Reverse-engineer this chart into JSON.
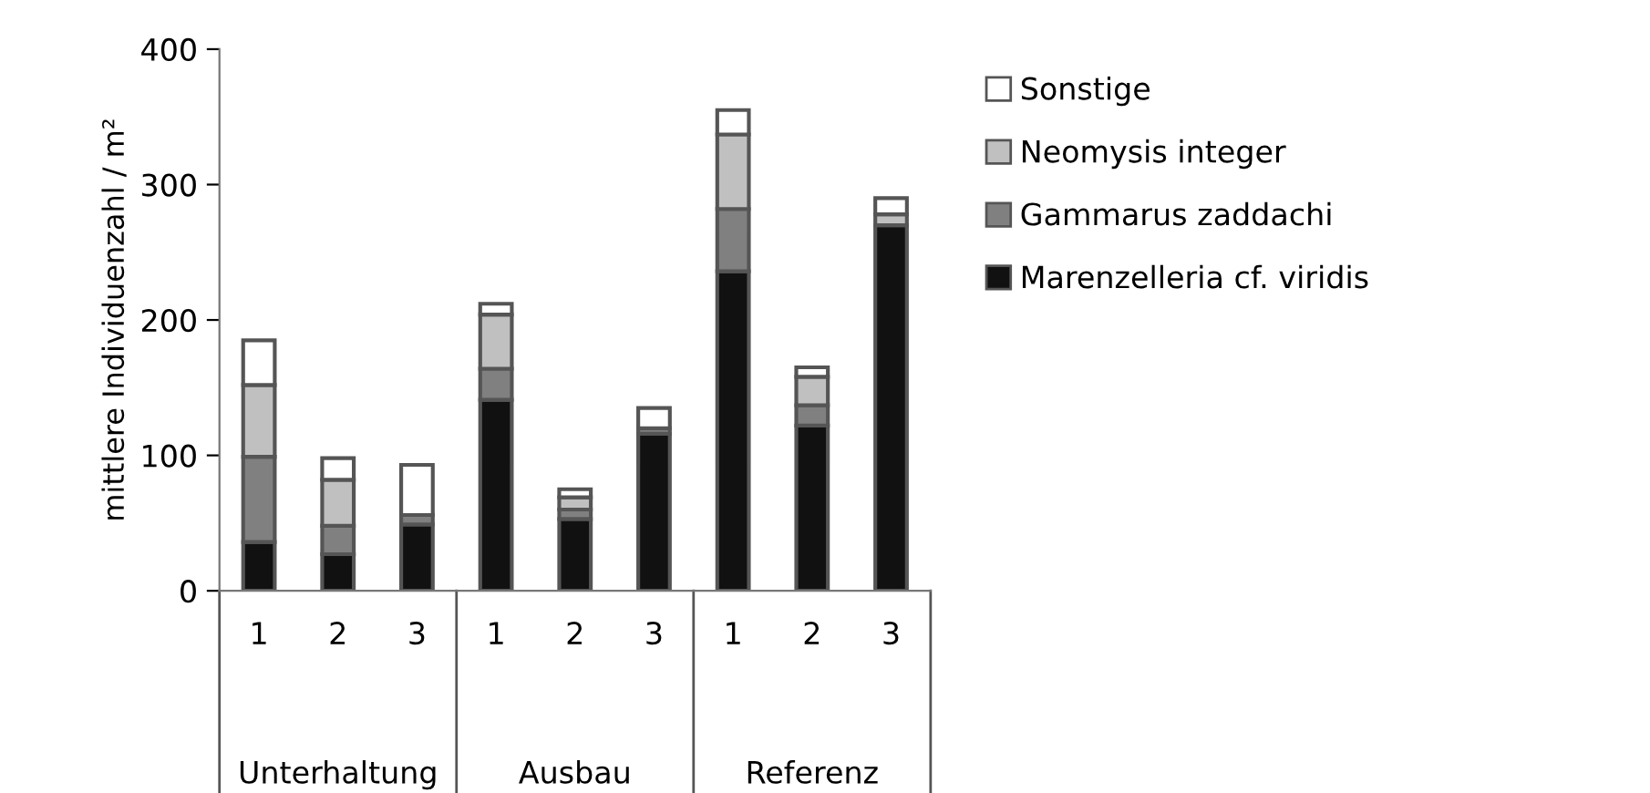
{
  "chart_data": {
    "type": "bar",
    "stacked": true,
    "ylabel": "mittlere Individuenzahl / m²",
    "categories": [
      "1",
      "2",
      "3",
      "1",
      "2",
      "3",
      "1",
      "2",
      "3"
    ],
    "annotations": [
      "Unterhaltung",
      "Ausbau",
      "Referenz"
    ],
    "series": [
      {
        "name": "Marenzelleria cf. viridis",
        "color": "#111111",
        "values": [
          36,
          27,
          49,
          141,
          53,
          116,
          236,
          122,
          270
        ]
      },
      {
        "name": "Gammarus zaddachi",
        "color": "#808080",
        "values": [
          63,
          21,
          7,
          23,
          7,
          4,
          46,
          15,
          null
        ]
      },
      {
        "name": "Neomysis integer",
        "color": "#c0c0c0",
        "values": [
          53,
          34,
          0,
          40,
          9,
          0,
          55,
          21,
          8
        ]
      },
      {
        "name": "Sonstige",
        "color": "#ffffff",
        "values": [
          33,
          16,
          37,
          8,
          6,
          15,
          18,
          7,
          12
        ]
      }
    ],
    "ylim": [
      0,
      400
    ],
    "yticks": [
      0,
      100,
      200,
      300,
      400
    ],
    "grid": false,
    "legend": "right"
  }
}
